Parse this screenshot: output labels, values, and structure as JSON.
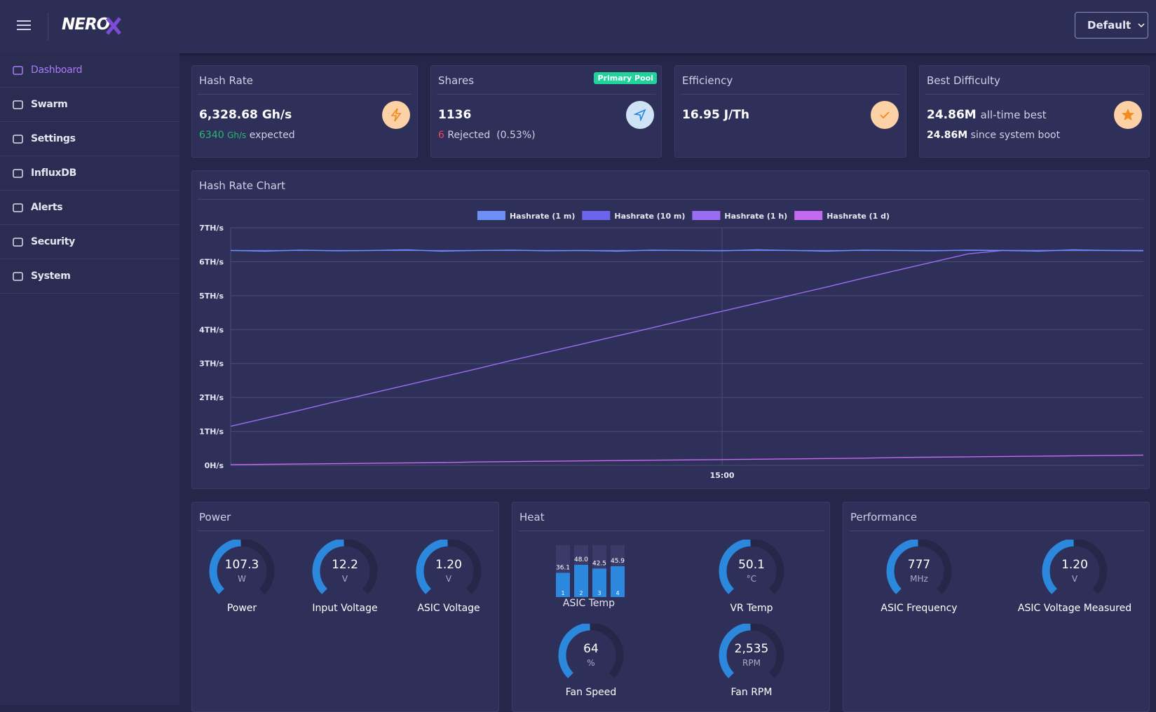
{
  "header": {
    "logo": "NERO",
    "profile_button": "Default"
  },
  "sidebar": {
    "items": [
      "Dashboard",
      "Swarm",
      "Settings",
      "InfluxDB",
      "Alerts",
      "Security",
      "System"
    ]
  },
  "cards": {
    "hash_rate": {
      "title": "Hash Rate",
      "value": "6,328.68",
      "unit": "Gh/s",
      "expected": "6340",
      "expected_unit": "Gh/s",
      "expected_label": "expected"
    },
    "shares": {
      "title": "Shares",
      "badge": "Primary Pool",
      "value": "1136",
      "rejected": "6",
      "rejected_label": "Rejected",
      "rejected_pct": "(0.53%)"
    },
    "efficiency": {
      "title": "Efficiency",
      "value": "16.95",
      "unit": "J/Th"
    },
    "best_difficulty": {
      "title": "Best Difficulty",
      "all_time": "24.86M",
      "all_time_label": "all-time best",
      "since_boot": "24.86M",
      "since_boot_label": "since system boot"
    }
  },
  "chart_data": {
    "type": "line",
    "title": "Hash Rate Chart",
    "categories": [
      null,
      null,
      null,
      null,
      null,
      null,
      null,
      null,
      null,
      null,
      null,
      null,
      null,
      null,
      "15:00",
      null,
      null,
      null,
      null,
      null,
      null,
      null,
      null,
      null,
      null,
      null,
      null
    ],
    "series": [
      {
        "name": "Hashrate (1 m)",
        "color": "#6f8ff8",
        "values": [
          6.33,
          6.31,
          6.34,
          6.32,
          6.33,
          6.35,
          6.31,
          6.33,
          6.34,
          6.32,
          6.33,
          6.31,
          6.34,
          6.33,
          6.32,
          6.35,
          6.33,
          6.31,
          6.34,
          6.33,
          6.32,
          6.34,
          6.33,
          6.31,
          6.35,
          6.33,
          6.32
        ]
      },
      {
        "name": "Hashrate (10 m)",
        "color": "#6c63ee",
        "values": [
          6.33,
          6.33,
          6.33,
          6.33,
          6.33,
          6.33,
          6.33,
          6.33,
          6.33,
          6.33,
          6.33,
          6.33,
          6.33,
          6.33,
          6.33,
          6.33,
          6.33,
          6.33,
          6.33,
          6.33,
          6.33,
          6.33,
          6.33,
          6.33,
          6.33,
          6.33,
          6.33
        ]
      },
      {
        "name": "Hashrate (1 h)",
        "color": "#9a6cf4",
        "values": [
          1.15,
          1.39,
          1.63,
          1.88,
          2.12,
          2.36,
          2.6,
          2.84,
          3.09,
          3.33,
          3.57,
          3.81,
          4.05,
          4.3,
          4.54,
          4.78,
          5.02,
          5.26,
          5.51,
          5.75,
          5.99,
          6.23,
          6.33,
          6.33,
          6.33,
          6.33,
          6.33
        ]
      },
      {
        "name": "Hashrate (1 d)",
        "color": "#c46af0",
        "values": [
          0.02,
          0.03,
          0.04,
          0.05,
          0.06,
          0.07,
          0.08,
          0.1,
          0.11,
          0.12,
          0.13,
          0.14,
          0.15,
          0.16,
          0.17,
          0.18,
          0.19,
          0.2,
          0.21,
          0.23,
          0.24,
          0.25,
          0.26,
          0.27,
          0.28,
          0.29,
          0.3
        ]
      }
    ],
    "ylim": [
      0,
      7
    ],
    "yticks": [
      {
        "value": 0,
        "label": "0H/s"
      },
      {
        "value": 1,
        "label": "1TH/s"
      },
      {
        "value": 2,
        "label": "2TH/s"
      },
      {
        "value": 3,
        "label": "3TH/s"
      },
      {
        "value": 4,
        "label": "4TH/s"
      },
      {
        "value": 5,
        "label": "5TH/s"
      },
      {
        "value": 6,
        "label": "6TH/s"
      },
      {
        "value": 7,
        "label": "7TH/s"
      }
    ],
    "grid": true,
    "legend": "top"
  },
  "power": {
    "title": "Power",
    "gauges": [
      {
        "value": "107.3",
        "unit": "W",
        "label": "Power"
      },
      {
        "value": "12.2",
        "unit": "V",
        "label": "Input Voltage"
      },
      {
        "value": "1.20",
        "unit": "V",
        "label": "ASIC Voltage"
      }
    ]
  },
  "heat": {
    "title": "Heat",
    "asic_temp": {
      "label": "ASIC Temp",
      "values": [
        36.1,
        48,
        42.5,
        45.9
      ],
      "value_labels": [
        "36.1",
        "48.0",
        "42.5",
        "45.9"
      ],
      "chips": [
        "1",
        "2",
        "3",
        "4"
      ]
    },
    "gauges": [
      {
        "value": "50.1",
        "unit": "°C",
        "label": "VR Temp"
      },
      {
        "value": "64",
        "unit": "%",
        "label": "Fan Speed"
      },
      {
        "value": "2,535",
        "unit": "RPM",
        "label": "Fan RPM"
      }
    ]
  },
  "performance": {
    "title": "Performance",
    "gauges": [
      {
        "value": "777",
        "unit": "MHz",
        "label": "ASIC Frequency"
      },
      {
        "value": "1.20",
        "unit": "V",
        "label": "ASIC Voltage Measured"
      }
    ]
  }
}
